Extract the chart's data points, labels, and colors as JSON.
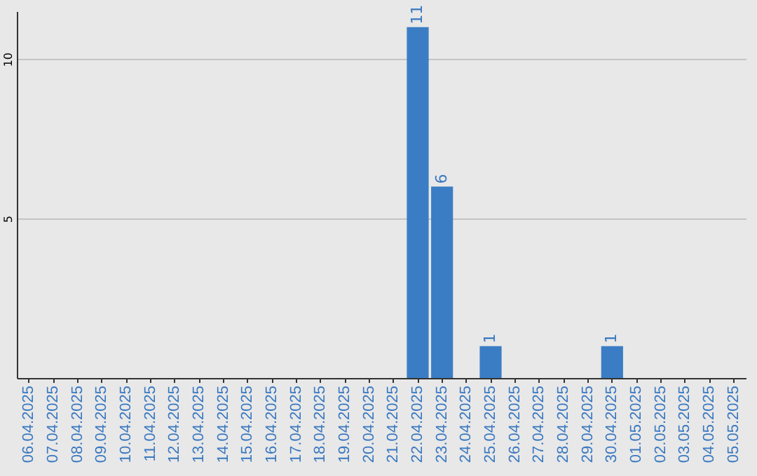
{
  "chart_data": {
    "type": "bar",
    "categories": [
      "06.04.2025",
      "07.04.2025",
      "08.04.2025",
      "09.04.2025",
      "10.04.2025",
      "11.04.2025",
      "12.04.2025",
      "13.04.2025",
      "14.04.2025",
      "15.04.2025",
      "16.04.2025",
      "17.04.2025",
      "18.04.2025",
      "19.04.2025",
      "20.04.2025",
      "21.04.2025",
      "22.04.2025",
      "23.04.2025",
      "24.04.2025",
      "25.04.2025",
      "26.04.2025",
      "27.04.2025",
      "28.04.2025",
      "29.04.2025",
      "30.04.2025",
      "01.05.2025",
      "02.05.2025",
      "03.05.2025",
      "04.05.2025",
      "05.05.2025"
    ],
    "values": [
      0,
      0,
      0,
      0,
      0,
      0,
      0,
      0,
      0,
      0,
      0,
      0,
      0,
      0,
      0,
      0,
      11,
      6,
      0,
      1,
      0,
      0,
      0,
      0,
      1,
      0,
      0,
      0,
      0,
      0
    ],
    "value_labels": [
      null,
      null,
      null,
      null,
      null,
      null,
      null,
      null,
      null,
      null,
      null,
      null,
      null,
      null,
      null,
      null,
      "11",
      "6",
      null,
      "1",
      null,
      null,
      null,
      null,
      "1",
      null,
      null,
      null,
      null,
      null
    ],
    "color": "#3b7dc4",
    "ylim": [
      0,
      11.5
    ],
    "yticks": [
      5,
      10
    ],
    "grid": "y"
  }
}
